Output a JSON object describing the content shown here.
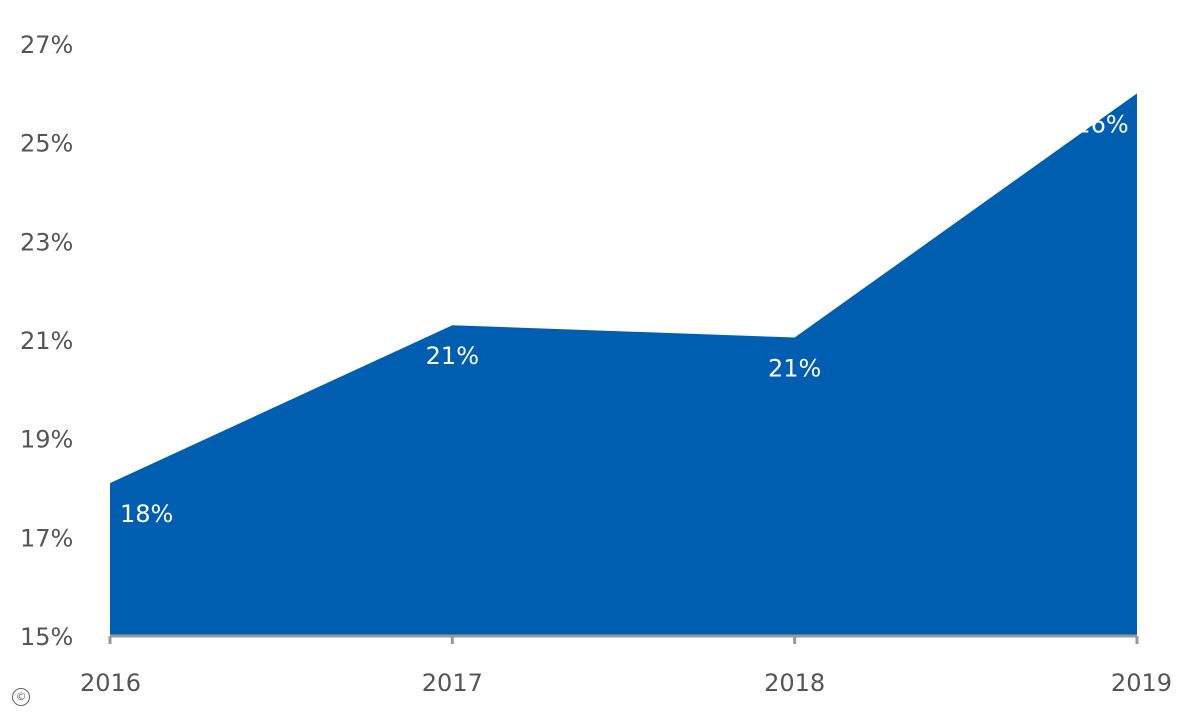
{
  "chart_data": {
    "type": "area",
    "x": [
      "2016",
      "2017",
      "2018",
      "2019"
    ],
    "series": [
      {
        "values": [
          18.1,
          21.3,
          21.05,
          26.0
        ],
        "color": "#005eb0"
      }
    ],
    "data_labels": [
      "18%",
      "21%",
      "21%",
      "26%"
    ],
    "ylim": [
      15,
      27
    ],
    "yticks": [
      15,
      17,
      19,
      21,
      23,
      25,
      27
    ],
    "ytick_labels": [
      "15%",
      "17%",
      "19%",
      "21%",
      "23%",
      "25%",
      "27%"
    ],
    "xtick_labels": [
      "2016",
      "2017",
      "2018",
      "2019"
    ],
    "title": "",
    "xlabel": "",
    "ylabel": "",
    "grid": false,
    "axis_color": "#999999"
  },
  "footer": {
    "copyright_symbol": "©"
  }
}
